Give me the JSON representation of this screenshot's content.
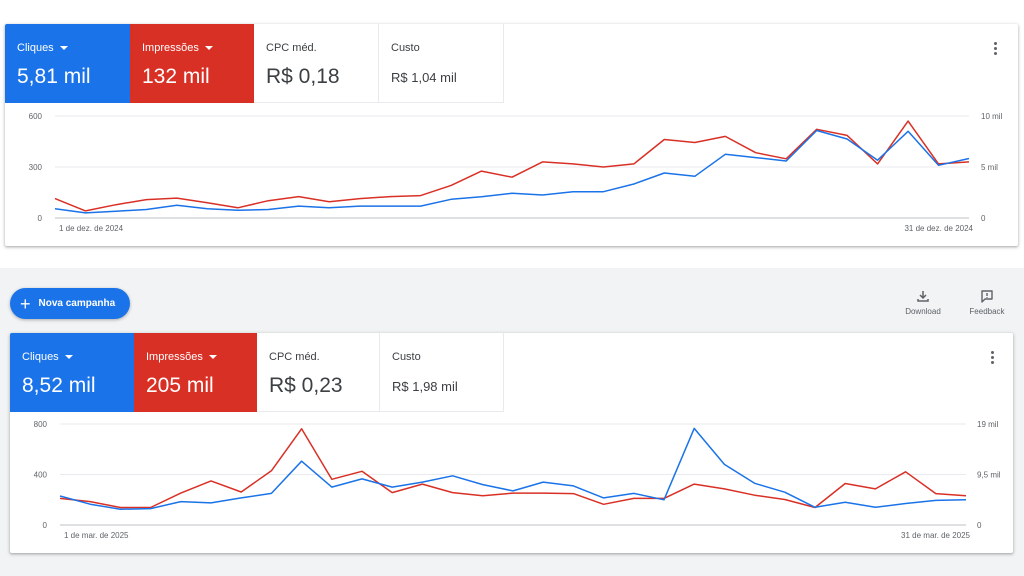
{
  "toolbar": {
    "new_campaign_label": "Nova campanha",
    "download_label": "Download",
    "feedback_label": "Feedback"
  },
  "colors": {
    "clicks": "#1a73e8",
    "impressions": "#d93025"
  },
  "panels": [
    {
      "metrics": [
        {
          "label": "Cliques",
          "value": "5,81 mil",
          "dropdown": true
        },
        {
          "label": "Impressões",
          "value": "132 mil",
          "dropdown": true
        },
        {
          "label": "CPC méd.",
          "value": "R$ 0,18"
        },
        {
          "label": "Custo",
          "value": "R$ 1,04 mil"
        }
      ]
    },
    {
      "metrics": [
        {
          "label": "Cliques",
          "value": "8,52 mil",
          "dropdown": true
        },
        {
          "label": "Impressões",
          "value": "205 mil",
          "dropdown": true
        },
        {
          "label": "CPC méd.",
          "value": "R$ 0,23"
        },
        {
          "label": "Custo",
          "value": "R$ 1,98 mil"
        }
      ]
    }
  ],
  "chart_data": [
    {
      "type": "line",
      "x_start_label": "1 de dez. de 2024",
      "x_end_label": "31 de dez. de 2024",
      "y_left_ticks": [
        "600",
        "300",
        "0"
      ],
      "y_right_ticks": [
        "10 mil",
        "5 mil",
        "0"
      ],
      "ylim_left": [
        0,
        600
      ],
      "ylim_right": [
        0,
        10000
      ],
      "grid": true,
      "series": [
        {
          "name": "Cliques",
          "axis": "left",
          "values": [
            55,
            30,
            40,
            50,
            75,
            55,
            45,
            50,
            70,
            60,
            70,
            70,
            70,
            110,
            125,
            145,
            135,
            155,
            155,
            200,
            265,
            245,
            375,
            355,
            335,
            515,
            465,
            340,
            510,
            310,
            350
          ]
        },
        {
          "name": "Impressões",
          "axis": "right",
          "values": [
            1900,
            700,
            1300,
            1800,
            1950,
            1500,
            1000,
            1700,
            2100,
            1600,
            1900,
            2100,
            2200,
            3200,
            4600,
            4000,
            5500,
            5300,
            5000,
            5300,
            7700,
            7400,
            8000,
            6400,
            5800,
            8700,
            8100,
            5300,
            9500,
            5300,
            5500
          ]
        }
      ]
    },
    {
      "type": "line",
      "x_start_label": "1 de mar. de 2025",
      "x_end_label": "31 de mar. de 2025",
      "y_left_ticks": [
        "800",
        "400",
        "0"
      ],
      "y_right_ticks": [
        "19 mil",
        "9,5 mil",
        "0"
      ],
      "ylim_left": [
        0,
        800
      ],
      "ylim_right": [
        0,
        19000
      ],
      "grid": true,
      "series": [
        {
          "name": "Cliques",
          "axis": "left",
          "values": [
            230,
            165,
            125,
            130,
            185,
            175,
            215,
            250,
            505,
            300,
            365,
            300,
            340,
            390,
            320,
            270,
            340,
            310,
            215,
            250,
            200,
            765,
            480,
            330,
            260,
            140,
            180,
            140,
            170,
            195,
            200
          ]
        },
        {
          "name": "Impressões",
          "axis": "right",
          "values": [
            5000,
            4400,
            3300,
            3300,
            6000,
            8300,
            6200,
            10200,
            18100,
            8600,
            10100,
            6100,
            7700,
            6100,
            5500,
            6000,
            6000,
            5900,
            3900,
            5000,
            5000,
            7700,
            6800,
            5600,
            4800,
            3300,
            7800,
            6800,
            10000,
            5900,
            5500
          ]
        }
      ]
    }
  ]
}
